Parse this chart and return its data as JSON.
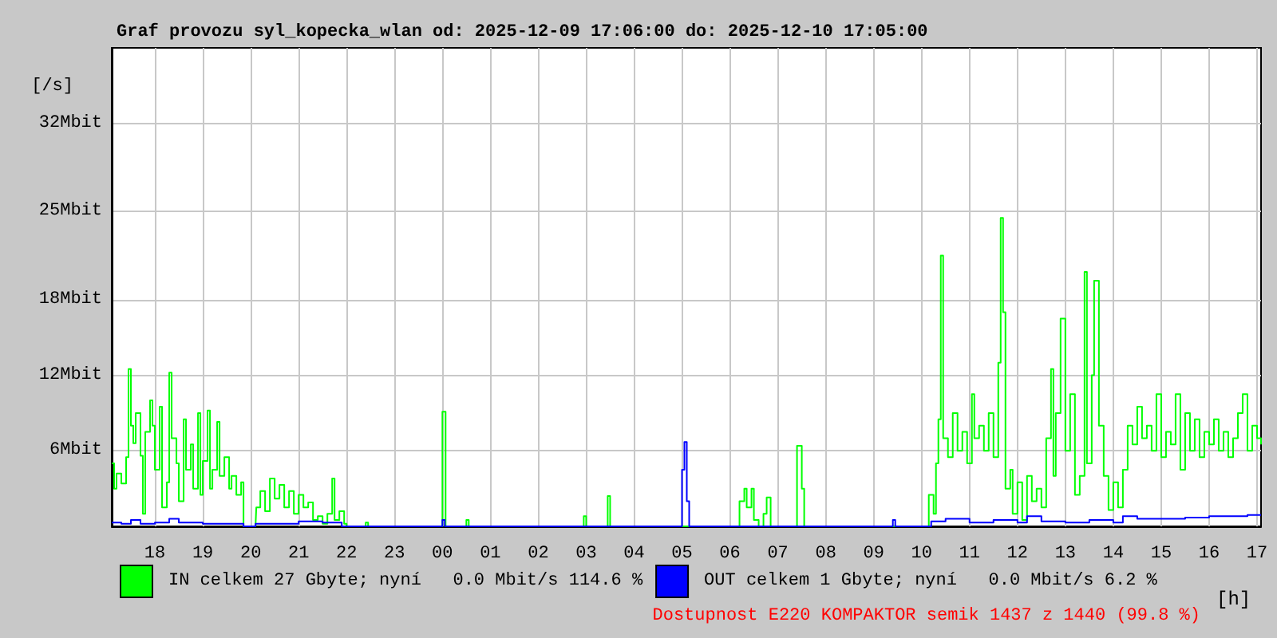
{
  "chart_data": {
    "type": "step",
    "title": "Graf provozu syl_kopecka_wlan od: 2025-12-09 17:06:00 do: 2025-12-10 17:05:00",
    "xlabel": "[h]",
    "ylabel": "[/s]",
    "xlim": [
      "2025-12-09T17:06",
      "2025-12-10T17:05"
    ],
    "xticks": [
      {
        "value": "2025-12-09T18:00",
        "label": "18"
      },
      {
        "value": "2025-12-09T19:00",
        "label": "19"
      },
      {
        "value": "2025-12-09T20:00",
        "label": "20"
      },
      {
        "value": "2025-12-09T21:00",
        "label": "21"
      },
      {
        "value": "2025-12-09T22:00",
        "label": "22"
      },
      {
        "value": "2025-12-09T23:00",
        "label": "23"
      },
      {
        "value": "2025-12-10T00:00",
        "label": "00"
      },
      {
        "value": "2025-12-10T01:00",
        "label": "01"
      },
      {
        "value": "2025-12-10T02:00",
        "label": "02"
      },
      {
        "value": "2025-12-10T03:00",
        "label": "03"
      },
      {
        "value": "2025-12-10T04:00",
        "label": "04"
      },
      {
        "value": "2025-12-10T05:00",
        "label": "05"
      },
      {
        "value": "2025-12-10T06:00",
        "label": "06"
      },
      {
        "value": "2025-12-10T07:00",
        "label": "07"
      },
      {
        "value": "2025-12-10T08:00",
        "label": "08"
      },
      {
        "value": "2025-12-10T09:00",
        "label": "09"
      },
      {
        "value": "2025-12-10T10:00",
        "label": "10"
      },
      {
        "value": "2025-12-10T11:00",
        "label": "11"
      },
      {
        "value": "2025-12-10T12:00",
        "label": "12"
      },
      {
        "value": "2025-12-10T13:00",
        "label": "13"
      },
      {
        "value": "2025-12-10T14:00",
        "label": "14"
      },
      {
        "value": "2025-12-10T15:00",
        "label": "15"
      },
      {
        "value": "2025-12-10T16:00",
        "label": "16"
      },
      {
        "value": "2025-12-10T17:00",
        "label": "17"
      }
    ],
    "ylim": [
      0,
      38
    ],
    "yticks": [
      {
        "value": 6,
        "label": "6Mbit"
      },
      {
        "value": 12,
        "label": "12Mbit"
      },
      {
        "value": 18,
        "label": "18Mbit"
      },
      {
        "value": 25,
        "label": "25Mbit"
      },
      {
        "value": 32,
        "label": "32Mbit"
      }
    ],
    "grid": true,
    "legend": "bottom",
    "marker": "none",
    "line_style": "solid",
    "annotations": [
      "Dostupnost E220 KOMPAKTOR semik 1437 z 1440 (99.8 %)"
    ],
    "series": [
      {
        "name": "IN celkem 27 Gbyte; nyní   0.0 Mbit/s 114.6 %",
        "color": "#00ff00",
        "x": [
          "2025-12-09T17:06",
          "2025-12-09T17:09",
          "2025-12-09T17:12",
          "2025-12-09T17:18",
          "2025-12-09T17:24",
          "2025-12-09T17:27",
          "2025-12-09T17:30",
          "2025-12-09T17:33",
          "2025-12-09T17:36",
          "2025-12-09T17:42",
          "2025-12-09T17:45",
          "2025-12-09T17:48",
          "2025-12-09T17:54",
          "2025-12-09T17:57",
          "2025-12-09T18:00",
          "2025-12-09T18:06",
          "2025-12-09T18:09",
          "2025-12-09T18:15",
          "2025-12-09T18:18",
          "2025-12-09T18:21",
          "2025-12-09T18:27",
          "2025-12-09T18:30",
          "2025-12-09T18:36",
          "2025-12-09T18:39",
          "2025-12-09T18:45",
          "2025-12-09T18:48",
          "2025-12-09T18:54",
          "2025-12-09T18:57",
          "2025-12-09T19:00",
          "2025-12-09T19:06",
          "2025-12-09T19:09",
          "2025-12-09T19:12",
          "2025-12-09T19:18",
          "2025-12-09T19:21",
          "2025-12-09T19:27",
          "2025-12-09T19:33",
          "2025-12-09T19:36",
          "2025-12-09T19:42",
          "2025-12-09T19:48",
          "2025-12-09T19:51",
          "2025-12-09T20:06",
          "2025-12-09T20:07",
          "2025-12-09T20:12",
          "2025-12-09T20:18",
          "2025-12-09T20:24",
          "2025-12-09T20:30",
          "2025-12-09T20:36",
          "2025-12-09T20:42",
          "2025-12-09T20:48",
          "2025-12-09T20:54",
          "2025-12-09T21:00",
          "2025-12-09T21:06",
          "2025-12-09T21:12",
          "2025-12-09T21:18",
          "2025-12-09T21:24",
          "2025-12-09T21:30",
          "2025-12-09T21:36",
          "2025-12-09T21:42",
          "2025-12-09T21:45",
          "2025-12-09T21:51",
          "2025-12-09T21:57",
          "2025-12-09T22:00",
          "2025-12-09T22:24",
          "2025-12-09T22:27",
          "2025-12-10T00:00",
          "2025-12-10T00:04",
          "2025-12-10T00:30",
          "2025-12-10T00:33",
          "2025-12-10T02:57",
          "2025-12-10T03:00",
          "2025-12-10T03:27",
          "2025-12-10T03:30",
          "2025-12-10T06:12",
          "2025-12-10T06:18",
          "2025-12-10T06:21",
          "2025-12-10T06:27",
          "2025-12-10T06:30",
          "2025-12-10T06:36",
          "2025-12-10T06:42",
          "2025-12-10T06:46",
          "2025-12-10T06:51",
          "2025-12-10T07:24",
          "2025-12-10T07:30",
          "2025-12-10T07:33",
          "2025-12-10T10:06",
          "2025-12-10T10:09",
          "2025-12-10T10:15",
          "2025-12-10T10:18",
          "2025-12-10T10:21",
          "2025-12-10T10:24",
          "2025-12-10T10:27",
          "2025-12-10T10:33",
          "2025-12-10T10:39",
          "2025-12-10T10:45",
          "2025-12-10T10:51",
          "2025-12-10T10:57",
          "2025-12-10T11:03",
          "2025-12-10T11:06",
          "2025-12-10T11:12",
          "2025-12-10T11:18",
          "2025-12-10T11:24",
          "2025-12-10T11:30",
          "2025-12-10T11:36",
          "2025-12-10T11:39",
          "2025-12-10T11:42",
          "2025-12-10T11:45",
          "2025-12-10T11:51",
          "2025-12-10T11:54",
          "2025-12-10T12:00",
          "2025-12-10T12:06",
          "2025-12-10T12:12",
          "2025-12-10T12:18",
          "2025-12-10T12:24",
          "2025-12-10T12:30",
          "2025-12-10T12:36",
          "2025-12-10T12:42",
          "2025-12-10T12:45",
          "2025-12-10T12:48",
          "2025-12-10T12:54",
          "2025-12-10T13:00",
          "2025-12-10T13:06",
          "2025-12-10T13:12",
          "2025-12-10T13:18",
          "2025-12-10T13:24",
          "2025-12-10T13:27",
          "2025-12-10T13:33",
          "2025-12-10T13:36",
          "2025-12-10T13:42",
          "2025-12-10T13:48",
          "2025-12-10T13:54",
          "2025-12-10T14:00",
          "2025-12-10T14:06",
          "2025-12-10T14:12",
          "2025-12-10T14:18",
          "2025-12-10T14:24",
          "2025-12-10T14:30",
          "2025-12-10T14:36",
          "2025-12-10T14:42",
          "2025-12-10T14:48",
          "2025-12-10T14:54",
          "2025-12-10T15:00",
          "2025-12-10T15:06",
          "2025-12-10T15:12",
          "2025-12-10T15:18",
          "2025-12-10T15:24",
          "2025-12-10T15:30",
          "2025-12-10T15:36",
          "2025-12-10T15:42",
          "2025-12-10T15:48",
          "2025-12-10T15:54",
          "2025-12-10T16:00",
          "2025-12-10T16:06",
          "2025-12-10T16:12",
          "2025-12-10T16:18",
          "2025-12-10T16:24",
          "2025-12-10T16:30",
          "2025-12-10T16:36",
          "2025-12-10T16:42",
          "2025-12-10T16:48",
          "2025-12-10T16:54",
          "2025-12-10T17:00",
          "2025-12-10T17:05"
        ],
        "values": [
          5.0,
          3.0,
          4.2,
          3.4,
          5.5,
          12.5,
          8.0,
          6.6,
          9.0,
          5.6,
          1.0,
          7.5,
          10.0,
          8.0,
          4.5,
          9.5,
          1.5,
          3.5,
          12.2,
          7.0,
          5.0,
          2.0,
          8.5,
          4.5,
          6.5,
          3.0,
          9.0,
          2.5,
          5.2,
          9.2,
          3.0,
          4.5,
          8.3,
          4.0,
          5.5,
          3.0,
          4.0,
          2.5,
          3.5,
          0.0,
          0.0,
          1.5,
          2.8,
          1.2,
          3.8,
          2.2,
          3.3,
          1.5,
          2.8,
          1.0,
          2.5,
          1.5,
          1.9,
          0.5,
          0.8,
          0.2,
          1.0,
          3.8,
          0.5,
          1.2,
          0.2,
          0.0,
          0.3,
          0.0,
          9.1,
          0.0,
          0.5,
          0.0,
          0.8,
          0.0,
          2.4,
          0.0,
          2.0,
          3.0,
          1.5,
          3.0,
          0.5,
          0.0,
          1.0,
          2.3,
          0.0,
          6.4,
          3.0,
          0.0,
          0.0,
          2.5,
          1.0,
          5.0,
          8.5,
          21.5,
          7.0,
          5.5,
          9.0,
          6.0,
          7.5,
          5.0,
          10.5,
          7.0,
          8.0,
          6.0,
          9.0,
          5.5,
          13.0,
          24.5,
          17.0,
          3.0,
          4.5,
          1.0,
          3.5,
          0.5,
          4.0,
          2.0,
          3.0,
          1.5,
          7.0,
          12.5,
          4.0,
          9.0,
          16.5,
          6.0,
          10.5,
          2.5,
          4.0,
          20.2,
          5.0,
          12.0,
          19.5,
          8.0,
          4.0,
          1.3,
          3.5,
          1.5,
          4.5,
          8.0,
          6.5,
          9.5,
          7.0,
          8.0,
          6.0,
          10.5,
          5.5,
          7.5,
          6.5,
          10.5,
          4.5,
          9.0,
          6.0,
          8.5,
          5.5,
          7.5,
          6.5,
          8.5,
          6.0,
          7.5,
          5.5,
          7.0,
          9.0,
          10.5,
          6.0,
          8.0,
          7.0,
          6.5
        ]
      },
      {
        "name": "OUT celkem 1 Gbyte; nyní   0.0 Mbit/s 6.2 %",
        "color": "#0000ff",
        "x": [
          "2025-12-09T17:06",
          "2025-12-09T17:18",
          "2025-12-09T17:30",
          "2025-12-09T17:42",
          "2025-12-09T18:00",
          "2025-12-09T18:18",
          "2025-12-09T18:30",
          "2025-12-09T19:00",
          "2025-12-09T19:48",
          "2025-12-09T19:51",
          "2025-12-09T20:06",
          "2025-12-09T21:00",
          "2025-12-09T21:30",
          "2025-12-09T21:54",
          "2025-12-09T23:57",
          "2025-12-10T00:00",
          "2025-12-10T00:03",
          "2025-12-10T04:57",
          "2025-12-10T05:00",
          "2025-12-10T05:03",
          "2025-12-10T05:06",
          "2025-12-10T05:09",
          "2025-12-10T09:21",
          "2025-12-10T09:24",
          "2025-12-10T09:27",
          "2025-12-10T10:06",
          "2025-12-10T10:12",
          "2025-12-10T10:30",
          "2025-12-10T11:00",
          "2025-12-10T11:30",
          "2025-12-10T12:00",
          "2025-12-10T12:12",
          "2025-12-10T12:30",
          "2025-12-10T13:00",
          "2025-12-10T13:30",
          "2025-12-10T14:00",
          "2025-12-10T14:12",
          "2025-12-10T14:30",
          "2025-12-10T15:00",
          "2025-12-10T15:30",
          "2025-12-10T16:00",
          "2025-12-10T16:30",
          "2025-12-10T16:48",
          "2025-12-10T17:05"
        ],
        "values": [
          0.3,
          0.2,
          0.5,
          0.2,
          0.3,
          0.6,
          0.3,
          0.2,
          0.2,
          0.0,
          0.2,
          0.4,
          0.3,
          0.0,
          0.0,
          0.5,
          0.0,
          0.0,
          4.5,
          6.7,
          2.0,
          0.0,
          0.0,
          0.5,
          0.0,
          0.0,
          0.4,
          0.6,
          0.3,
          0.5,
          0.3,
          0.8,
          0.4,
          0.3,
          0.5,
          0.3,
          0.8,
          0.6,
          0.6,
          0.7,
          0.8,
          0.8,
          0.9,
          0.9
        ]
      }
    ]
  }
}
